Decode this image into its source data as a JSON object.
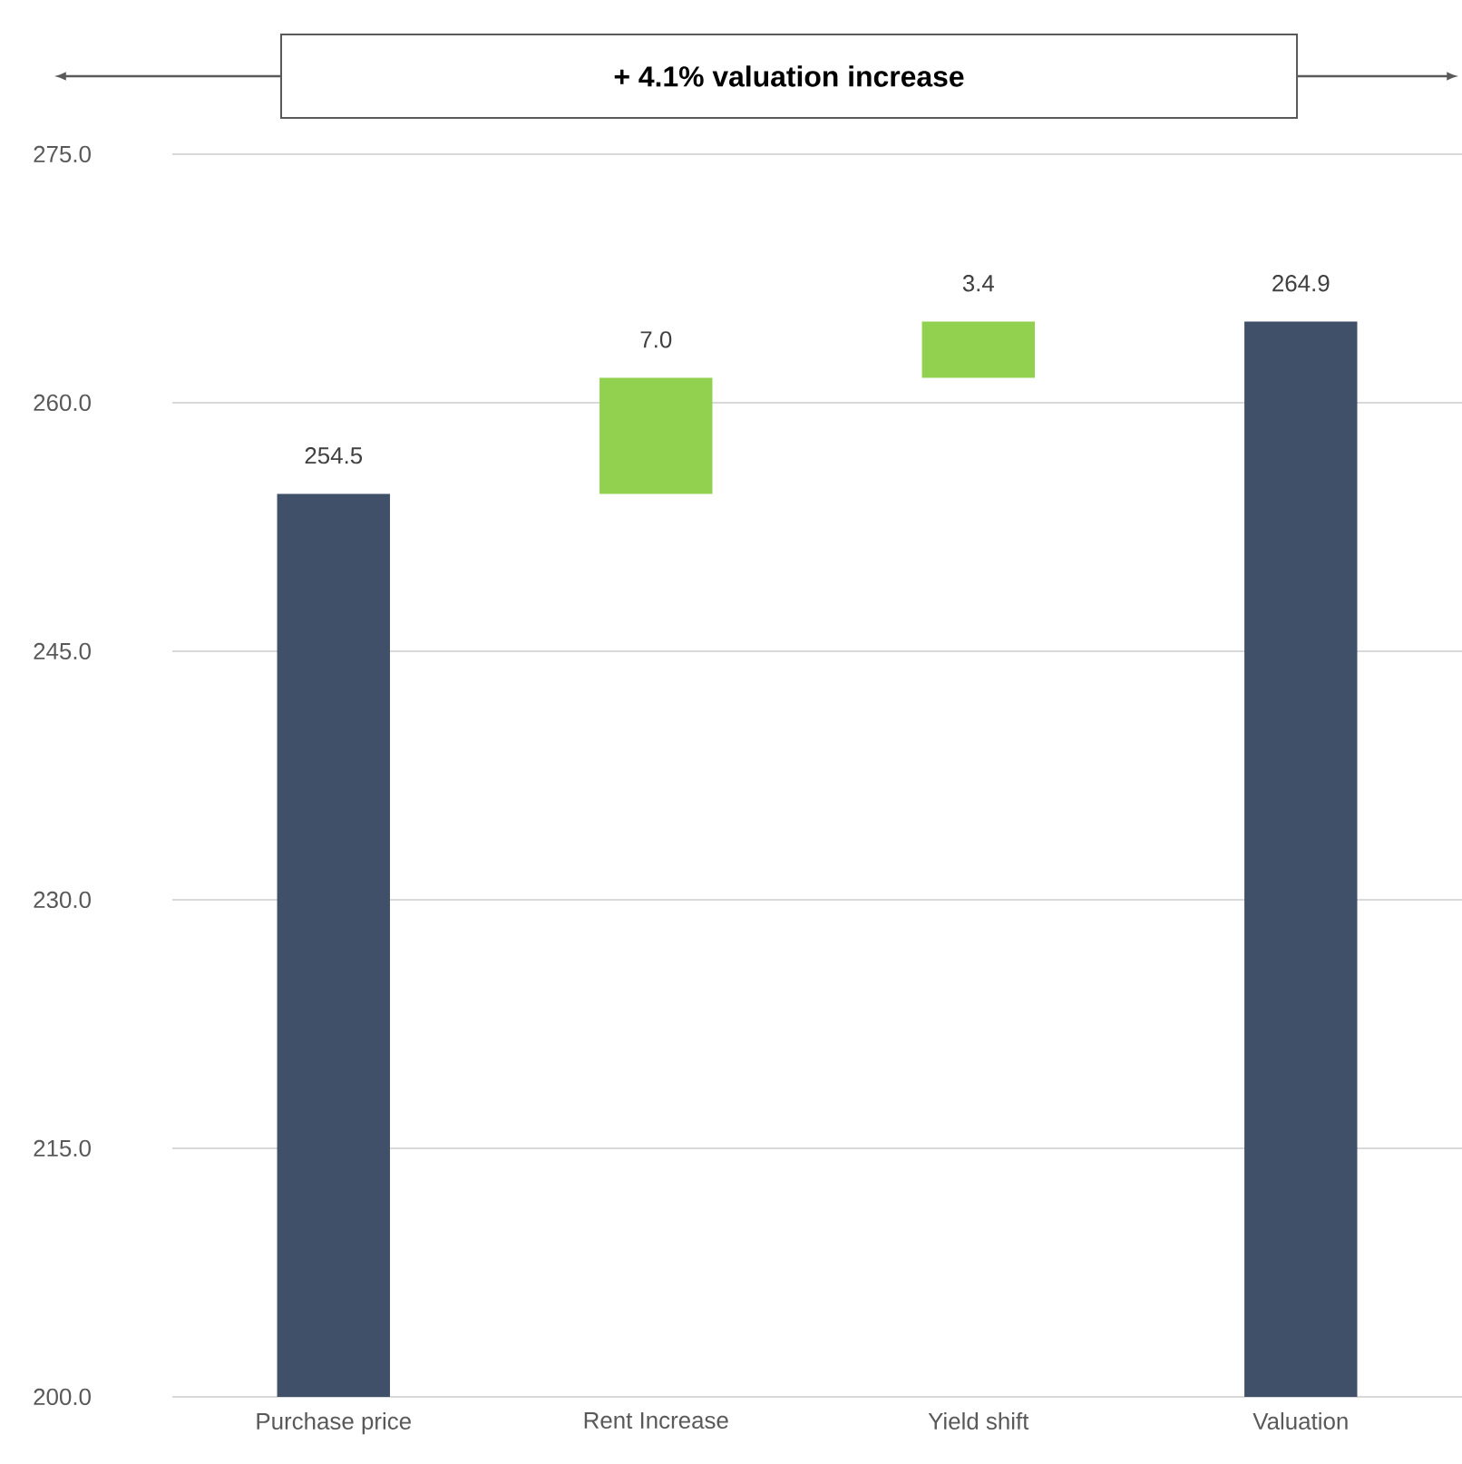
{
  "chart_data": {
    "type": "bar",
    "annotations": [
      "+ 4.1% valuation increase"
    ],
    "categories": [
      "Purchase price",
      "Rent Increase",
      "Yield shift",
      "Valuation"
    ],
    "values": [
      254.5,
      7.0,
      3.4,
      264.9
    ],
    "base": [
      null,
      254.5,
      261.5,
      null
    ],
    "colors": [
      "#3f5068",
      "#92d050",
      "#92d050",
      "#3f5068"
    ],
    "value_labels": [
      "254.5",
      "7.0",
      "3.4",
      "264.9"
    ],
    "ylim": [
      200,
      275
    ],
    "yticks": [
      {
        "value": 200,
        "label": "200.0"
      },
      {
        "value": 215,
        "label": "215.0"
      },
      {
        "value": 230,
        "label": "230.0"
      },
      {
        "value": 245,
        "label": "245.0"
      },
      {
        "value": 260,
        "label": "260.0"
      },
      {
        "value": 275,
        "label": "275.0"
      }
    ],
    "grid": "y"
  }
}
